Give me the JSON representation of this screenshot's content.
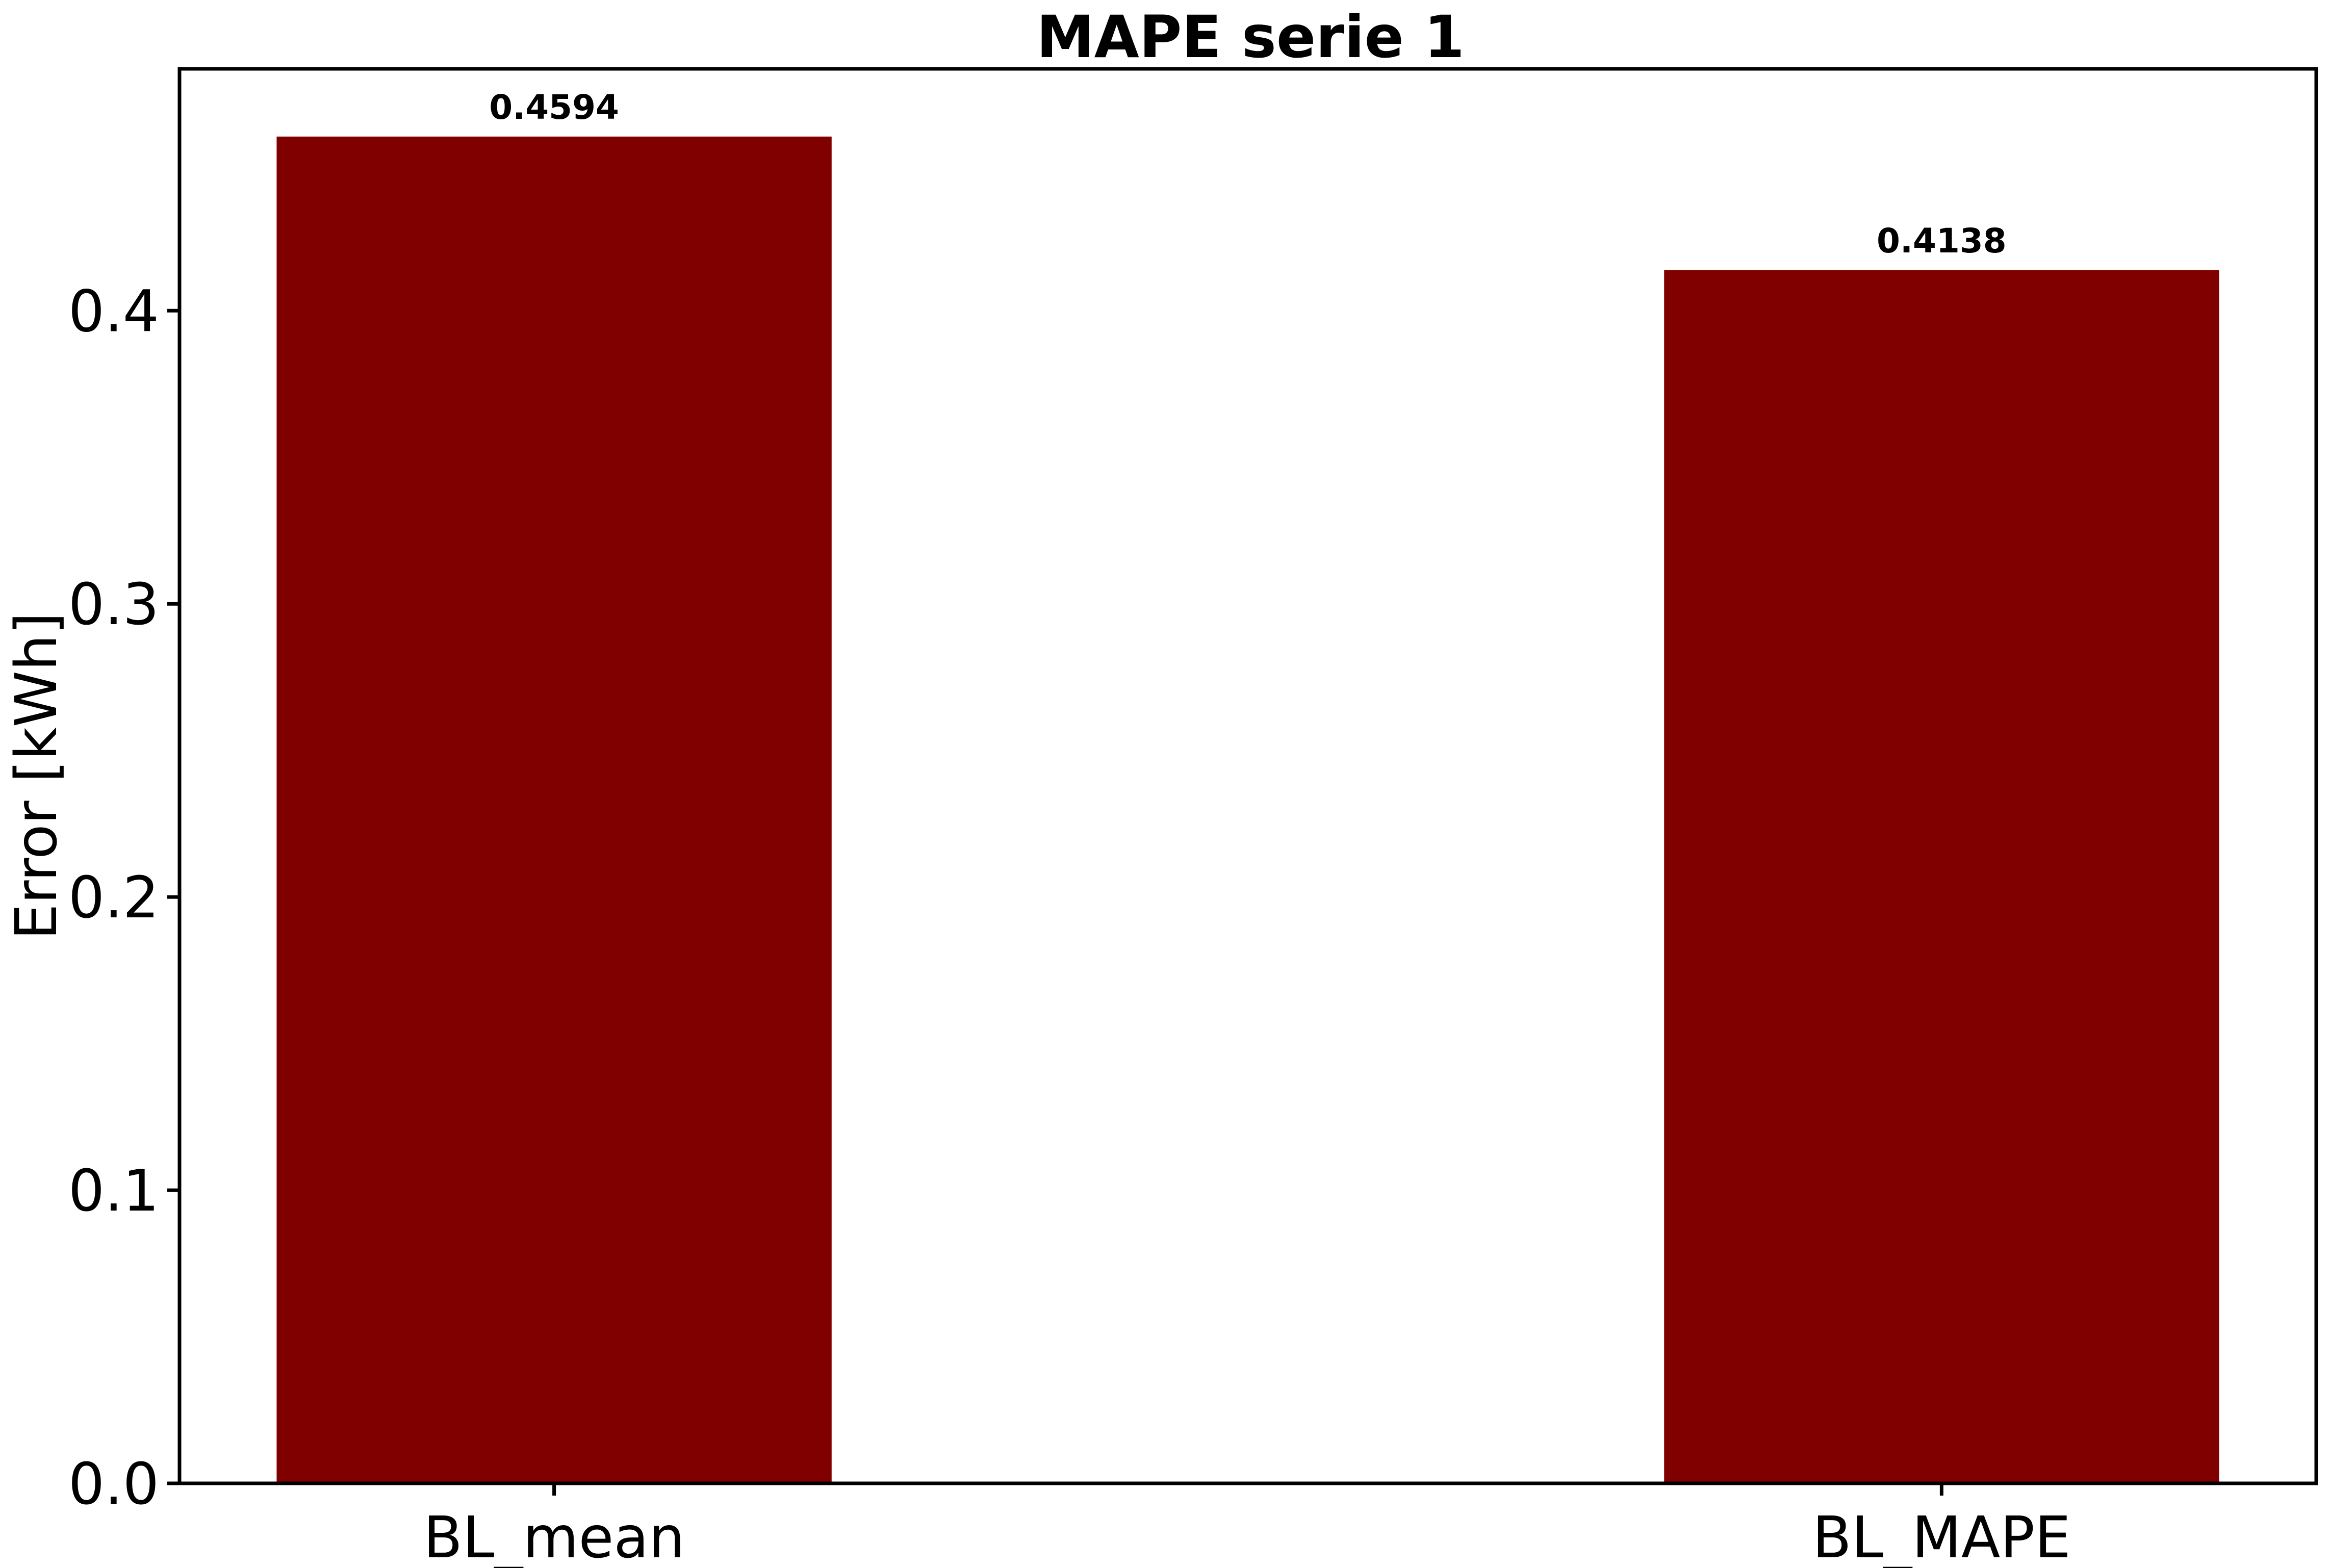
{
  "chart_data": {
    "type": "bar",
    "title": "MAPE serie 1",
    "xlabel": "",
    "ylabel": "Error [kWh]",
    "categories": [
      "BL_mean",
      "BL_MAPE"
    ],
    "values": [
      0.4594,
      0.4138
    ],
    "data_labels": [
      "0.4594",
      "0.4138"
    ],
    "ylim": [
      0.0,
      0.4825
    ],
    "yticks": [
      0.0,
      0.1,
      0.2,
      0.3,
      0.4
    ],
    "ytick_labels": [
      "0.0",
      "0.1",
      "0.2",
      "0.3",
      "0.4"
    ],
    "bar_color": "#800000",
    "grid": false,
    "legend": "none"
  }
}
